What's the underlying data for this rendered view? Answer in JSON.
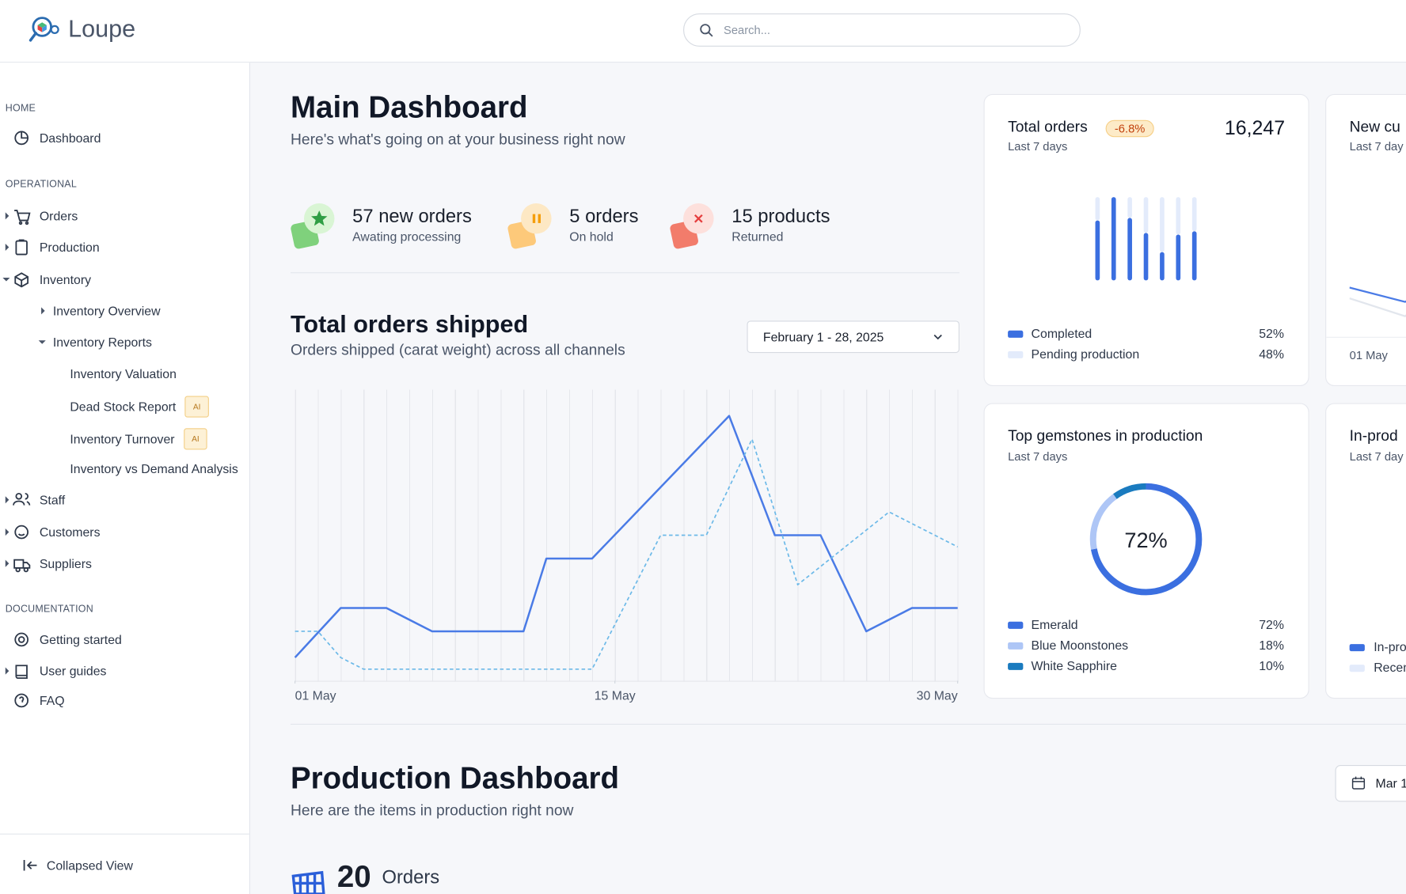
{
  "header": {
    "logo": "Loupe",
    "search_placeholder": "Search..."
  },
  "sidebar": {
    "sections": [
      {
        "label": "HOME",
        "items": [
          {
            "label": "Dashboard"
          }
        ]
      },
      {
        "label": "OPERATIONAL",
        "items": [
          {
            "label": "Orders"
          },
          {
            "label": "Production"
          },
          {
            "label": "Inventory",
            "children": [
              {
                "label": "Inventory Overview"
              },
              {
                "label": "Inventory Reports",
                "children": [
                  {
                    "label": "Inventory Valuation"
                  },
                  {
                    "label": "Dead Stock Report",
                    "badge": "AI"
                  },
                  {
                    "label": "Inventory Turnover",
                    "badge": "AI"
                  },
                  {
                    "label": "Inventory vs Demand Analysis"
                  }
                ]
              }
            ]
          },
          {
            "label": "Staff"
          },
          {
            "label": "Customers"
          },
          {
            "label": "Suppliers"
          }
        ]
      },
      {
        "label": "DOCUMENTATION",
        "items": [
          {
            "label": "Getting started"
          },
          {
            "label": "User guides"
          },
          {
            "label": "FAQ"
          }
        ]
      }
    ],
    "footer": "Collapsed View"
  },
  "main": {
    "title": "Main Dashboard",
    "subtitle": "Here's what's going on at your business right now",
    "stats": [
      {
        "title": "57 new orders",
        "caption": "Awating processing"
      },
      {
        "title": "5 orders",
        "caption": "On hold"
      },
      {
        "title": "15 products",
        "caption": "Returned"
      }
    ],
    "date_range": "February 1 - 28, 2025"
  },
  "production": {
    "title": "Production Dashboard",
    "subtitle": "Here are the items in production right now",
    "date_button": "Mar 1",
    "orders_count": "20",
    "orders_label": "Orders"
  },
  "side_cards": [
    {
      "title": "New cu",
      "subtitle": "Last 7 day",
      "axis_label": "01 May"
    },
    {
      "title": "In-prod",
      "subtitle": "Last 7 day",
      "legend": [
        "In-pro",
        "Recen"
      ]
    }
  ],
  "chart_data": [
    {
      "type": "line",
      "title": "Total orders shipped",
      "subtitle": "Orders shipped (carat weight) across all channels",
      "xlim": [
        1,
        30
      ],
      "xticks": [
        {
          "value": 1,
          "label": "01 May"
        },
        {
          "value": 15,
          "label": "15 May"
        },
        {
          "value": 30,
          "label": "30 May"
        }
      ],
      "ylim": [
        0,
        100
      ],
      "grid": true,
      "series": [
        {
          "color": "#4a7be6",
          "dashed": false,
          "x": [
            1,
            3,
            5,
            7,
            11,
            12,
            14,
            20,
            22,
            24,
            26,
            28,
            30
          ],
          "values": [
            8,
            25,
            25,
            17,
            17,
            42,
            42,
            91,
            50,
            50,
            17,
            25,
            25
          ]
        },
        {
          "color": "#6cb9e8",
          "dashed": true,
          "x": [
            1,
            2,
            3,
            4,
            14,
            17,
            19,
            21,
            23,
            27,
            30
          ],
          "values": [
            17,
            17,
            8,
            4,
            4,
            50,
            50,
            83,
            33,
            58,
            46
          ]
        }
      ]
    },
    {
      "type": "bar",
      "title": "Total orders",
      "badge": "-6.8%",
      "subtitle": "Last 7 days",
      "total": {
        "value": 16247,
        "label": "16,247"
      },
      "stacked": true,
      "ylim": [
        0,
        100
      ],
      "categories": [
        null,
        null,
        null,
        null,
        null,
        null,
        null
      ],
      "series": [
        {
          "name": "Completed",
          "share": "52%",
          "color": "#3b6fe0",
          "values": [
            72,
            100,
            75,
            57,
            34,
            55,
            59
          ]
        },
        {
          "name": "Pending production",
          "share": "48%",
          "color": "#e3ebfb",
          "values": [
            28,
            0,
            25,
            43,
            66,
            45,
            41
          ]
        }
      ]
    },
    {
      "type": "pie",
      "donut": true,
      "title": "Top gemstones in production",
      "subtitle": "Last 7 days",
      "center_label": "72%",
      "categories": [
        "Emerald",
        "Blue Moonstones",
        "White Sapphire"
      ],
      "values": [
        72,
        18,
        10
      ],
      "value_labels": [
        "72%",
        "18%",
        "10%"
      ],
      "colors": [
        "#3b6fe0",
        "#aec6f6",
        "#1a7bbf"
      ]
    }
  ]
}
